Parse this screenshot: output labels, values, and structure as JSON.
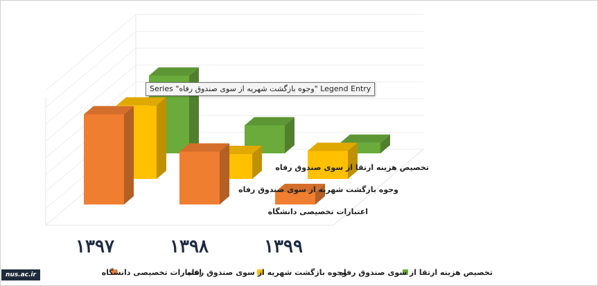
{
  "chart_data": {
    "type": "bar",
    "categories": [
      "۱۳۹۷",
      "۱۳۹۸",
      "۱۳۹۹"
    ],
    "series": [
      {
        "name": "اعتبارات تخصیصی دانشگاه",
        "color": "#f07e30",
        "values": [
          145,
          85,
          20
        ]
      },
      {
        "name": "وجوه بازگشت شهریه از سوی صندوق رفاه",
        "color": "#ffc000",
        "values": [
          118,
          40,
          45
        ]
      },
      {
        "name": "تخصیص هزینه ارتقا از سوی صندوق رفاه",
        "color": "#6aab3c",
        "values": [
          125,
          45,
          17
        ]
      }
    ],
    "ylim": [
      0,
      160
    ],
    "grid": true,
    "legend": "bottom",
    "view": "3d-clustered-column"
  },
  "tooltip": "Series \"وجوه بازگشت شهریه از سوی صندوق رفاه\" Legend Entry",
  "watermark": "nus.ac.ir"
}
